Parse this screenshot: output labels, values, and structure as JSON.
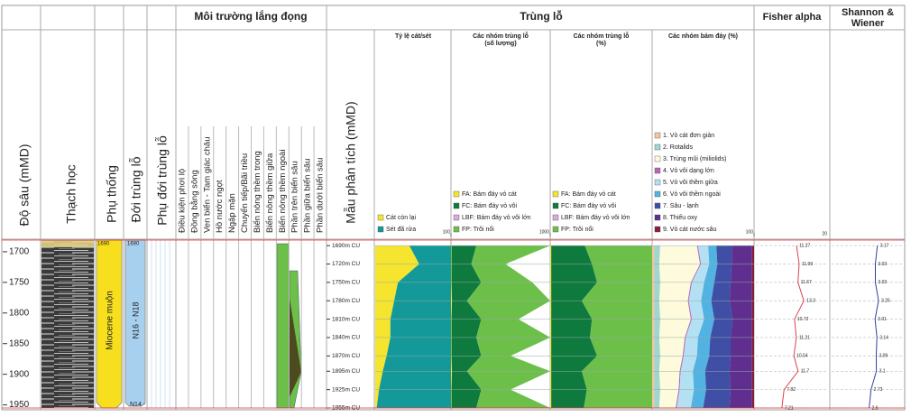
{
  "header": {
    "depth": "Độ sâu (mMD)",
    "lithology": "Thạch học",
    "subseries": "Phụ thống",
    "zone": "Đới trùng lỗ",
    "subzone": "Phụ đới trùng lỗ",
    "environment": "Môi trường lắng đọng",
    "foram": "Trùng lỗ",
    "sample": "Mẫu phân tích (mMD)",
    "fisher": "Fisher alpha",
    "shannon": [
      "Shannon &",
      "Wiener"
    ]
  },
  "environments": [
    "Điều kiện phơi lộ",
    "Đồng bằng sông",
    "Ven biển - Tam giác châu",
    "Hồ nước ngọt",
    "Ngập mặn",
    "Chuyển tiếp/Bãi triều",
    "Biển nông thềm trong",
    "Biển nông thềm giữa",
    "Biển nông thềm ngoài",
    "Phần trên biển sâu",
    "Phần giữa biển sâu",
    "Phần dưới biển sâu"
  ],
  "depth_axis": {
    "ylim": [
      1681,
      1955
    ],
    "yticks": [
      1700,
      1750,
      1800,
      1850,
      1900,
      1950
    ]
  },
  "stratigraphy": {
    "subseries_top": "1690",
    "subseries": "Miocene muộn",
    "zone_top": "1690",
    "zone": "N16 - N18",
    "zone_next": "N14 -"
  },
  "samples": [
    {
      "value": 1690,
      "label": "1690m CU"
    },
    {
      "value": 1720,
      "label": "1720m CU"
    },
    {
      "value": 1750,
      "label": "1750m CU"
    },
    {
      "value": 1780,
      "label": "1780m CU"
    },
    {
      "value": 1810,
      "label": "1810m CU"
    },
    {
      "value": 1840,
      "label": "1840m CU"
    },
    {
      "value": 1870,
      "label": "1870m CU"
    },
    {
      "value": 1895,
      "label": "1895m CU"
    },
    {
      "value": 1925,
      "label": "1925m CU"
    },
    {
      "value": 1955,
      "label": "1955m CU"
    }
  ],
  "panels": [
    {
      "title": [
        "Tỷ lệ cát/sét"
      ],
      "xlim": [
        0,
        100
      ],
      "xticks": [
        100
      ],
      "series": [
        {
          "name": "Cát còn lại",
          "color": "#f5e52e",
          "values": [
            45,
            58,
            30,
            25,
            20,
            20,
            15,
            10,
            5,
            2
          ]
        },
        {
          "name": "Sét đã rửa",
          "color": "#13999a",
          "values": [
            55,
            42,
            70,
            75,
            80,
            80,
            85,
            90,
            95,
            98
          ]
        }
      ]
    },
    {
      "title": [
        "Các nhóm trùng lỗ",
        "(số lượng)"
      ],
      "xlim": [
        0,
        1000
      ],
      "xticks": [
        1000
      ],
      "series": [
        {
          "name": "FA: Bám đáy vỏ cát",
          "color": "#f5e52e",
          "values": [
            5,
            5,
            5,
            10,
            5,
            5,
            5,
            10,
            5,
            5
          ]
        },
        {
          "name": "FC: Bám đáy vỏ vôi",
          "color": "#0f7a3e",
          "values": [
            250,
            200,
            300,
            150,
            300,
            250,
            300,
            150,
            300,
            250
          ]
        },
        {
          "name": "LBF: Bám đáy vỏ vôi lớn",
          "color": "#d9a9dd",
          "values": [
            0,
            0,
            0,
            0,
            0,
            0,
            0,
            0,
            0,
            0
          ]
        },
        {
          "name": "FP: Trôi nổi",
          "color": "#6cc04a",
          "values": [
            745,
            345,
            515,
            840,
            375,
            745,
            295,
            840,
            295,
            745
          ]
        }
      ]
    },
    {
      "title": [
        "Các nhóm trùng lỗ",
        "(%)"
      ],
      "xlim": [
        0,
        100
      ],
      "series": [
        {
          "name": "FA: Bám đáy vỏ cát",
          "color": "#f5e52e",
          "values": [
            1,
            1,
            1,
            1,
            1,
            1,
            1,
            1,
            1,
            1
          ]
        },
        {
          "name": "FC: Bám đáy vỏ vôi",
          "color": "#0f7a3e",
          "values": [
            33,
            40,
            45,
            30,
            40,
            38,
            45,
            30,
            35,
            32
          ]
        },
        {
          "name": "LBF: Bám đáy vỏ vôi lớn",
          "color": "#d9a9dd",
          "values": [
            0,
            0,
            0,
            0,
            0,
            0,
            0,
            0,
            0,
            0
          ]
        },
        {
          "name": "FP: Trôi nổi",
          "color": "#6cc04a",
          "values": [
            66,
            59,
            54,
            69,
            59,
            61,
            54,
            69,
            64,
            67
          ]
        }
      ]
    },
    {
      "title": [
        "Các nhóm bám đáy (%)"
      ],
      "xlim": [
        0,
        100
      ],
      "xticks": [
        100
      ],
      "series": [
        {
          "name": "1. Vỏ cát đơn giản",
          "color": "#f6c59e",
          "values": [
            2,
            2,
            2,
            2,
            2,
            2,
            2,
            2,
            2,
            2
          ]
        },
        {
          "name": "2. Rotalids",
          "color": "#9fd6cf",
          "values": [
            6,
            5,
            6,
            5,
            6,
            5,
            6,
            5,
            6,
            5
          ]
        },
        {
          "name": "3. Trùng mũi (miliolids)",
          "color": "#fdfbdc",
          "values": [
            36,
            40,
            30,
            28,
            30,
            25,
            22,
            20,
            18,
            16
          ]
        },
        {
          "name": "4. Vỏ vôi dạng lớn",
          "color": "#b765b8",
          "values": [
            1,
            1,
            1,
            1,
            1,
            1,
            1,
            1,
            1,
            1
          ]
        },
        {
          "name": "5. Vỏ vôi thềm giữa",
          "color": "#b4e0f3",
          "values": [
            10,
            8,
            12,
            12,
            12,
            12,
            13,
            12,
            14,
            14
          ]
        },
        {
          "name": "6. Vỏ vôi thềm ngoài",
          "color": "#52b2e2",
          "values": [
            8,
            8,
            10,
            10,
            10,
            12,
            12,
            12,
            12,
            12
          ]
        },
        {
          "name": "7. Sâu - lạnh",
          "color": "#3f4fa5",
          "values": [
            15,
            14,
            16,
            18,
            18,
            20,
            21,
            24,
            24,
            26
          ]
        },
        {
          "name": "8. Thiếu oxy",
          "color": "#5e2f8f",
          "values": [
            20,
            20,
            21,
            22,
            19,
            21,
            21,
            22,
            21,
            22
          ]
        },
        {
          "name": "9. Vỏ cát nước sâu",
          "color": "#8b1c3b",
          "values": [
            2,
            2,
            2,
            2,
            2,
            2,
            2,
            2,
            2,
            2
          ]
        }
      ]
    }
  ],
  "fisher": {
    "xlim": [
      0,
      20
    ],
    "xticks": [
      20
    ],
    "color": "#d9434d",
    "values": [
      11.27,
      11.99,
      11.67,
      13.3,
      10.72,
      11.21,
      10.54,
      11.7,
      7.82,
      7.21
    ]
  },
  "shannon": {
    "xlim": [
      0,
      5
    ],
    "color": "#3340a0",
    "values": [
      3.17,
      3.03,
      3.03,
      3.25,
      3.01,
      3.14,
      3.09,
      3.1,
      2.73,
      2.6
    ]
  }
}
